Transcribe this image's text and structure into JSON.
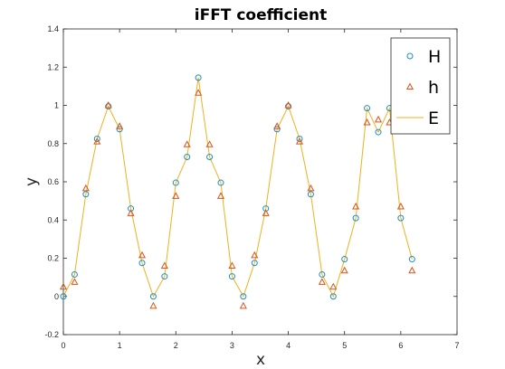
{
  "chart_data": {
    "type": "scatter",
    "title": "iFFT coefficient",
    "xlabel": "x",
    "ylabel": "y",
    "xlim": [
      0,
      7
    ],
    "ylim": [
      -0.2,
      1.4
    ],
    "xticks": [
      "0",
      "1",
      "2",
      "3",
      "4",
      "5",
      "6",
      "7"
    ],
    "yticks": [
      "-0.2",
      "0",
      "0.2",
      "0.4",
      "0.6",
      "0.8",
      "1",
      "1.2",
      "1.4"
    ],
    "grid": false,
    "legend": "top-right",
    "series": [
      {
        "name": "H",
        "marker": "circle",
        "color": "#1a8fbf",
        "x": [
          0,
          0.2,
          0.4,
          0.6,
          0.8,
          1.0,
          1.2,
          1.4,
          1.6,
          1.8,
          2.0,
          2.2,
          2.4,
          2.6,
          2.8,
          3.0,
          3.2,
          3.4,
          3.6,
          3.8,
          4.0,
          4.2,
          4.4,
          4.6,
          4.8,
          5.0,
          5.2,
          5.4,
          5.6,
          5.8,
          6.0,
          6.2
        ],
        "y": [
          0.0,
          0.115,
          0.535,
          0.825,
          0.995,
          0.875,
          0.46,
          0.175,
          0.0,
          0.105,
          0.595,
          0.73,
          1.145,
          0.73,
          0.595,
          0.105,
          0.0,
          0.175,
          0.46,
          0.875,
          0.995,
          0.825,
          0.535,
          0.115,
          0.0,
          0.195,
          0.41,
          0.985,
          0.86,
          0.985,
          0.41,
          0.195
        ]
      },
      {
        "name": "h",
        "marker": "triangle",
        "color": "#d95319",
        "x": [
          0,
          0.2,
          0.4,
          0.6,
          0.8,
          1.0,
          1.2,
          1.4,
          1.6,
          1.8,
          2.0,
          2.2,
          2.4,
          2.6,
          2.8,
          3.0,
          3.2,
          3.4,
          3.6,
          3.8,
          4.0,
          4.2,
          4.4,
          4.6,
          4.8,
          5.0,
          5.2,
          5.4,
          5.6,
          5.8,
          6.0,
          6.2
        ],
        "y": [
          0.05,
          0.075,
          0.565,
          0.81,
          1.0,
          0.89,
          0.435,
          0.215,
          -0.05,
          0.16,
          0.525,
          0.795,
          1.065,
          0.795,
          0.525,
          0.16,
          -0.05,
          0.215,
          0.435,
          0.89,
          1.0,
          0.81,
          0.565,
          0.075,
          0.05,
          0.135,
          0.47,
          0.91,
          0.925,
          0.91,
          0.47,
          0.135
        ]
      },
      {
        "name": "E",
        "marker": "line",
        "color": "#edb120",
        "x": [
          0,
          0.2,
          0.4,
          0.6,
          0.8,
          1.0,
          1.2,
          1.4,
          1.6,
          1.8,
          2.0,
          2.2,
          2.4,
          2.6,
          2.8,
          3.0,
          3.2,
          3.4,
          3.6,
          3.8,
          4.0,
          4.2,
          4.4,
          4.6,
          4.8,
          5.0,
          5.2,
          5.4,
          5.6,
          5.8,
          6.0,
          6.2
        ],
        "y": [
          0.0,
          0.115,
          0.535,
          0.825,
          0.995,
          0.875,
          0.46,
          0.175,
          0.0,
          0.105,
          0.595,
          0.73,
          1.145,
          0.73,
          0.595,
          0.105,
          0.0,
          0.175,
          0.46,
          0.875,
          0.995,
          0.825,
          0.535,
          0.115,
          0.0,
          0.195,
          0.41,
          0.985,
          0.86,
          0.985,
          0.41,
          0.195
        ]
      }
    ]
  }
}
